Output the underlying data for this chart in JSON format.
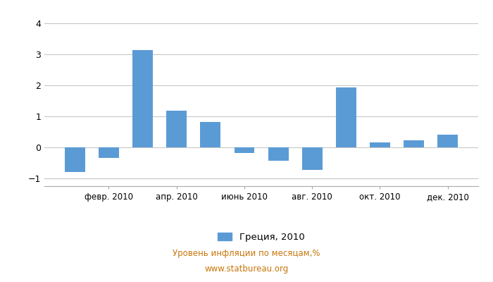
{
  "months": [
    1,
    2,
    3,
    4,
    5,
    6,
    7,
    8,
    9,
    10,
    11,
    12
  ],
  "tick_months": [
    2,
    4,
    6,
    8,
    10,
    12
  ],
  "tick_labels": [
    "февр. 2010",
    "апр. 2010",
    "июнь 2010",
    "авг. 2010",
    "окт. 2010",
    "дек. 2010"
  ],
  "values": [
    -0.8,
    -0.35,
    3.15,
    1.18,
    0.82,
    -0.18,
    -0.42,
    -0.72,
    1.93,
    0.15,
    0.22,
    0.42
  ],
  "bar_color": "#5b9bd5",
  "ylim": [
    -1.25,
    4.3
  ],
  "yticks": [
    -1,
    0,
    1,
    2,
    3,
    4
  ],
  "legend_label": "Греция, 2010",
  "footnote_line1": "Уровень инфляции по месяцам,%",
  "footnote_line2": "www.statbureau.org",
  "footnote_color": "#c8760a",
  "background_color": "#ffffff",
  "grid_color": "#c8c8c8",
  "spine_color": "#aaaaaa",
  "tick_label_fontsize": 8.5,
  "ytick_label_fontsize": 9
}
